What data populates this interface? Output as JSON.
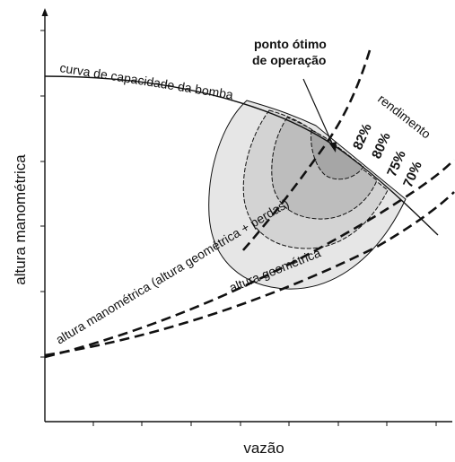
{
  "axes": {
    "x_label": "vazão",
    "y_label": "altura manométrica"
  },
  "curves": {
    "pump_curve_label": "curva de capacidade da bomba",
    "system_curve_label": "altura manométrica (altura geométrica + perdas)",
    "geometric_label": "altura geométrica",
    "efficiency_label": "rendimento"
  },
  "annotation": {
    "line1": "ponto ótimo",
    "line2": "de operação"
  },
  "efficiency_levels": [
    "82%",
    "80%",
    "75%",
    "70%"
  ],
  "colors": {
    "band_70": "#e6e6e6",
    "band_75": "#d3d3d3",
    "band_80": "#bdbdbd",
    "band_82": "#a6a6a6",
    "line": "#111111"
  }
}
